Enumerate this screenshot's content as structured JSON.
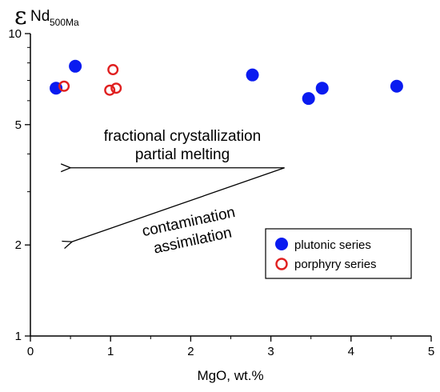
{
  "chart_data": {
    "type": "scatter",
    "xlabel": "MgO, wt.%",
    "ylabel_symbol": "ε",
    "ylabel_main": "Nd",
    "ylabel_sub": "500Ma",
    "xlim": [
      0,
      5
    ],
    "ylim": [
      1,
      10
    ],
    "yscale": "log",
    "x_ticks": [
      "0",
      "1",
      "2",
      "3",
      "4",
      "5"
    ],
    "y_ticks": [
      {
        "value": 1,
        "label": "1"
      },
      {
        "value": 2,
        "label": "2"
      },
      {
        "value": 5,
        "label": "5"
      },
      {
        "value": 10,
        "label": "10"
      }
    ],
    "grid": false,
    "legend_position": "bottom-right",
    "series": [
      {
        "name": "plutonic series",
        "marker": "filled-circle",
        "color": "#0a1bf0",
        "points": [
          {
            "x": 0.32,
            "y": 6.6
          },
          {
            "x": 0.56,
            "y": 7.8
          },
          {
            "x": 2.77,
            "y": 7.3
          },
          {
            "x": 3.47,
            "y": 6.1
          },
          {
            "x": 3.64,
            "y": 6.6
          },
          {
            "x": 4.57,
            "y": 6.7
          }
        ]
      },
      {
        "name": "porphyry series",
        "marker": "open-circle",
        "color": "#e02020",
        "points": [
          {
            "x": 0.42,
            "y": 6.7
          },
          {
            "x": 1.03,
            "y": 7.6
          },
          {
            "x": 0.99,
            "y": 6.5
          },
          {
            "x": 1.07,
            "y": 6.6
          }
        ]
      }
    ],
    "annotations": [
      {
        "lines": [
          "fractional crystallization",
          "partial melting"
        ],
        "arrow": {
          "from": [
            3.17,
            3.6
          ],
          "to": [
            0.5,
            3.6
          ]
        }
      },
      {
        "lines": [
          "contamination",
          "assimilation"
        ],
        "arrow": {
          "from": [
            3.17,
            3.6
          ],
          "to": [
            0.52,
            2.05
          ]
        }
      }
    ]
  }
}
